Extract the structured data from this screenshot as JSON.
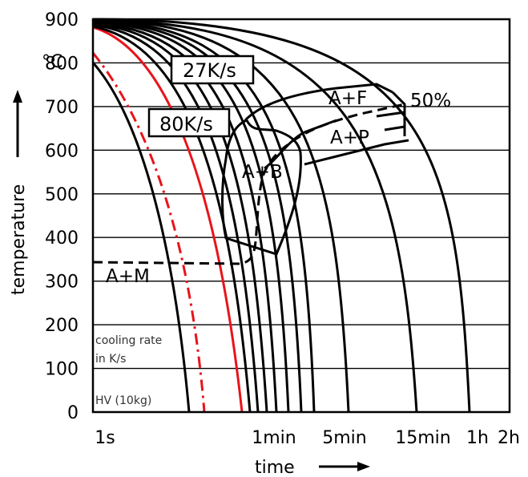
{
  "chart_data": {
    "type": "line",
    "title": "",
    "xlabel": "time",
    "ylabel": "temperature",
    "yunit": "°C",
    "ylim": [
      0,
      900
    ],
    "yticks": [
      "0",
      "100",
      "200",
      "300",
      "400",
      "500",
      "600",
      "700",
      "800",
      "900"
    ],
    "xticks": [
      {
        "label": "1s",
        "t": 1
      },
      {
        "label": "1min",
        "t": 60
      },
      {
        "label": "5min",
        "t": 300
      },
      {
        "label": "15min",
        "t": 900
      },
      {
        "label": "1h",
        "t": 3600
      },
      {
        "label": "2h",
        "t": 7200
      }
    ],
    "xscale": "log",
    "grid": true,
    "boxes": [
      {
        "label": "27K/s"
      },
      {
        "label": "80K/s"
      }
    ],
    "phases": [
      {
        "label": "A+F"
      },
      {
        "label": "A+P"
      },
      {
        "label": "A+B"
      },
      {
        "label": "A+M"
      },
      {
        "label": "50%"
      }
    ],
    "notes": [
      {
        "text": "cooling rate"
      },
      {
        "text": "in K/s"
      },
      {
        "text": "HV (10kg)"
      }
    ],
    "colors": {
      "highlight": "#e8141b",
      "ink": "#000000",
      "grid": "#000000"
    }
  }
}
